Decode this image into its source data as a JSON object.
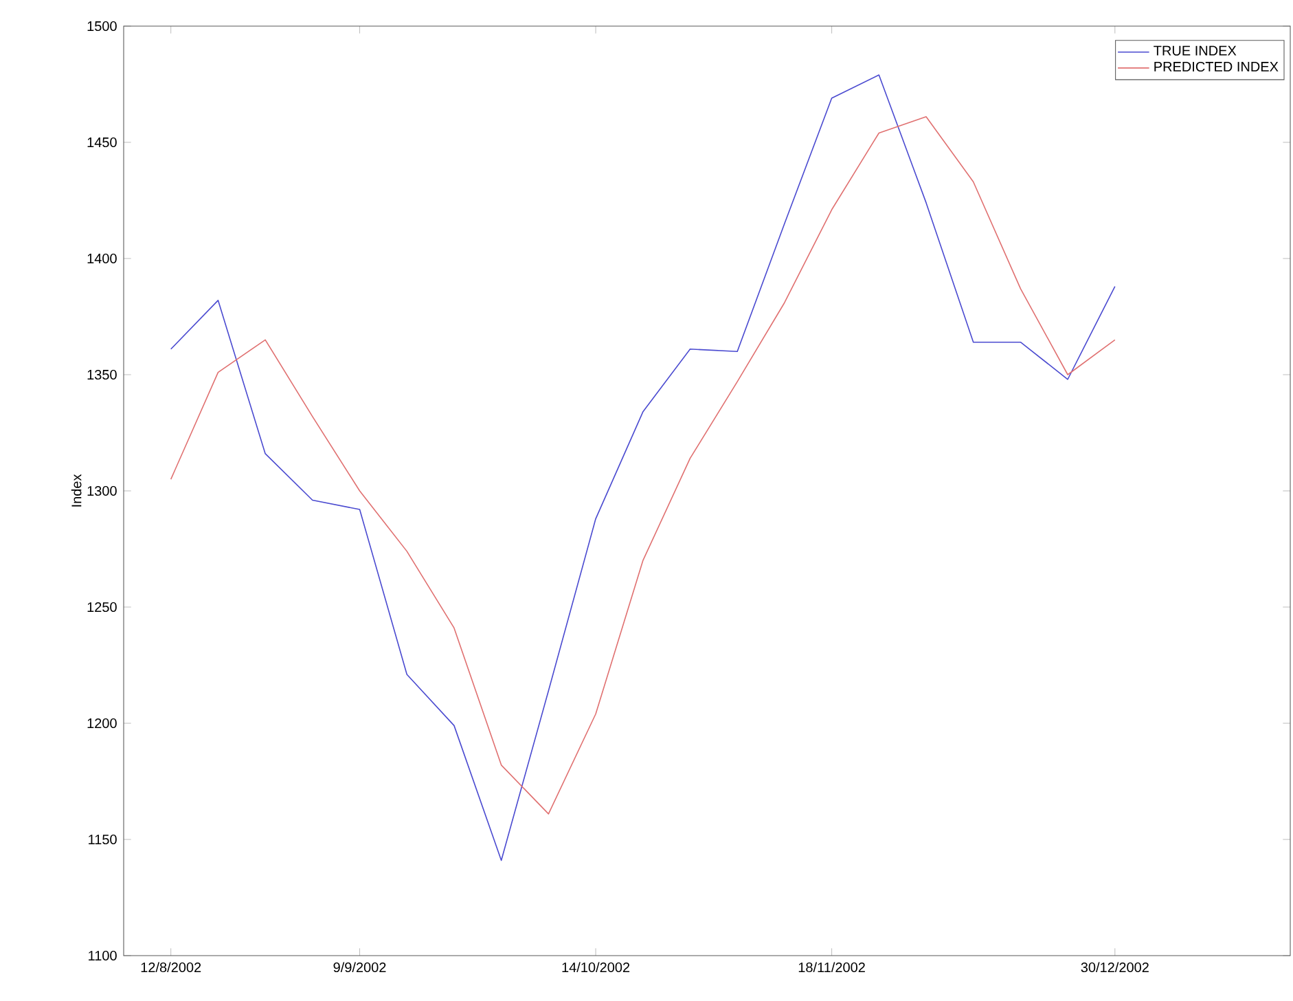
{
  "chart_data": {
    "type": "line",
    "ylabel": "Index",
    "x": [
      "2002-08-12",
      "2002-08-19",
      "2002-08-26",
      "2002-09-02",
      "2002-09-09",
      "2002-09-16",
      "2002-09-23",
      "2002-09-30",
      "2002-10-07",
      "2002-10-14",
      "2002-10-21",
      "2002-10-28",
      "2002-11-04",
      "2002-11-11",
      "2002-11-18",
      "2002-11-25",
      "2002-12-02",
      "2002-12-09",
      "2002-12-16",
      "2002-12-23",
      "2002-12-30"
    ],
    "series": [
      {
        "name": "TRUE INDEX",
        "color": "#4a4ad0",
        "values": [
          1361,
          1382,
          1316,
          1296,
          1292,
          1221,
          1199,
          1141,
          1214,
          1288,
          1334,
          1361,
          1360,
          1415,
          1469,
          1479,
          1424,
          1364,
          1364,
          1348,
          1388
        ]
      },
      {
        "name": "PREDICTED INDEX",
        "color": "#e07070",
        "values": [
          1305,
          1351,
          1365,
          1332,
          1300,
          1274,
          1241,
          1182,
          1161,
          1204,
          1270,
          1314,
          1347,
          1381,
          1421,
          1454,
          1461,
          1433,
          1387,
          1350,
          1365
        ]
      }
    ],
    "xlim": [
      "2002-08-05",
      "2003-01-25"
    ],
    "xticks": [
      {
        "value": "2002-08-12",
        "label": "12/8/2002"
      },
      {
        "value": "2002-09-09",
        "label": "9/9/2002"
      },
      {
        "value": "2002-10-14",
        "label": "14/10/2002"
      },
      {
        "value": "2002-11-18",
        "label": "18/11/2002"
      },
      {
        "value": "2002-12-30",
        "label": "30/12/2002"
      }
    ],
    "ylim": [
      1100,
      1500
    ],
    "yticks": [
      1100,
      1150,
      1200,
      1250,
      1300,
      1350,
      1400,
      1450,
      1500
    ],
    "legend": "top right",
    "line_style": "solid"
  }
}
